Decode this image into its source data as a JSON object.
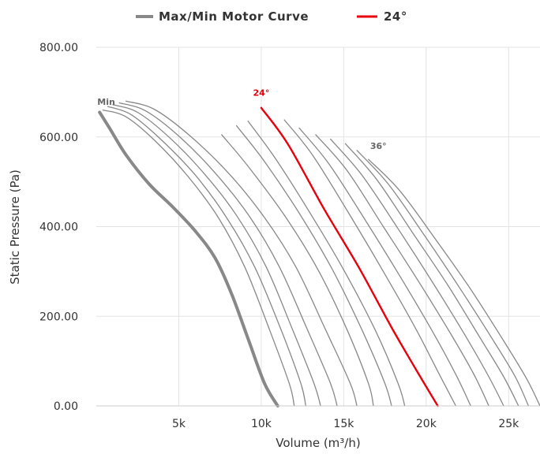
{
  "chart_data": {
    "type": "line",
    "title": "",
    "xlabel": "Volume (m³/h)",
    "ylabel": "Static Pressure (Pa)",
    "xlim": [
      0,
      26900
    ],
    "ylim": [
      0,
      800
    ],
    "x_ticks": [
      5000,
      10000,
      15000,
      20000,
      25000
    ],
    "x_tick_labels": [
      "5k",
      "10k",
      "15k",
      "20k",
      "25k"
    ],
    "y_ticks": [
      0,
      200,
      400,
      600,
      800
    ],
    "y_tick_labels": [
      "0.00",
      "200.00",
      "400.00",
      "600.00",
      "800.00"
    ],
    "grid": true,
    "legend_position": "top-center",
    "legend": [
      {
        "name": "Max/Min Motor Curve",
        "color": "#888888"
      },
      {
        "name": "24°",
        "color": "#e8000b"
      }
    ],
    "series": [
      {
        "name": "Max/Min Motor Curve",
        "color": "#888888",
        "width": 4,
        "x": [
          200,
          800,
          1800,
          3200,
          4600,
          6000,
          7200,
          8200,
          9200,
          10200,
          11000
        ],
        "y": [
          655,
          620,
          560,
          495,
          445,
          390,
          330,
          250,
          150,
          50,
          0
        ]
      },
      {
        "color": "#888888",
        "width": 1.3,
        "x": [
          400,
          1800,
          3600,
          5600,
          7400,
          9000,
          10500,
          11700,
          12000
        ],
        "y": [
          660,
          645,
          590,
          510,
          420,
          310,
          170,
          50,
          0
        ]
      },
      {
        "color": "#888888",
        "width": 1.3,
        "x": [
          700,
          2100,
          3900,
          6000,
          7900,
          9600,
          11200,
          12400,
          12700
        ],
        "y": [
          668,
          650,
          595,
          515,
          420,
          310,
          170,
          50,
          0
        ]
      },
      {
        "color": "#888888",
        "width": 1.3,
        "x": [
          1000,
          2500,
          4400,
          6500,
          8500,
          10300,
          11900,
          13200,
          13600
        ],
        "y": [
          672,
          655,
          600,
          520,
          425,
          310,
          170,
          50,
          0
        ]
      },
      {
        "color": "#888888",
        "width": 1.3,
        "x": [
          1400,
          3000,
          5000,
          7200,
          9300,
          11100,
          12800,
          14200,
          14600
        ],
        "y": [
          676,
          658,
          602,
          520,
          422,
          310,
          170,
          50,
          0
        ]
      },
      {
        "color": "#888888",
        "width": 1.3,
        "x": [
          1800,
          3500,
          5600,
          8000,
          10200,
          12100,
          13900,
          15400,
          15800
        ],
        "y": [
          680,
          662,
          605,
          520,
          420,
          310,
          170,
          50,
          0
        ]
      },
      {
        "color": "#888888",
        "width": 1.3,
        "x": [
          7600,
          9300,
          11500,
          13500,
          15200,
          16500,
          16800
        ],
        "y": [
          605,
          530,
          420,
          300,
          170,
          50,
          0
        ]
      },
      {
        "color": "#888888",
        "width": 1.3,
        "x": [
          8500,
          10200,
          12300,
          14300,
          16100,
          17500,
          17900
        ],
        "y": [
          625,
          545,
          430,
          305,
          170,
          50,
          0
        ]
      },
      {
        "color": "#888888",
        "width": 1.3,
        "x": [
          9200,
          10800,
          12800,
          14900,
          16900,
          18300,
          18700
        ],
        "y": [
          635,
          555,
          440,
          310,
          170,
          50,
          0
        ]
      },
      {
        "name": "24°",
        "color": "#e8000b",
        "width": 2.4,
        "x": [
          10000,
          11600,
          13800,
          15900,
          17900,
          19400,
          20700
        ],
        "y": [
          665,
          585,
          440,
          310,
          175,
          80,
          0
        ]
      },
      {
        "color": "#888888",
        "width": 1.3,
        "x": [
          11400,
          13100,
          15300,
          17400,
          19400,
          20800,
          21800
        ],
        "y": [
          638,
          560,
          430,
          300,
          170,
          70,
          0
        ]
      },
      {
        "color": "#888888",
        "width": 1.3,
        "x": [
          12300,
          14100,
          16300,
          18400,
          20400,
          21800,
          22700
        ],
        "y": [
          620,
          540,
          415,
          290,
          165,
          70,
          0
        ]
      },
      {
        "color": "#888888",
        "width": 1.3,
        "x": [
          13300,
          15200,
          17400,
          19500,
          21500,
          22900,
          23800
        ],
        "y": [
          605,
          525,
          400,
          280,
          160,
          70,
          0
        ]
      },
      {
        "color": "#888888",
        "width": 1.3,
        "x": [
          14200,
          16100,
          18300,
          20400,
          22400,
          23800,
          24700
        ],
        "y": [
          595,
          515,
          395,
          275,
          155,
          65,
          0
        ]
      },
      {
        "color": "#888888",
        "width": 1.3,
        "x": [
          15100,
          17000,
          19200,
          21300,
          23300,
          24700,
          25600
        ],
        "y": [
          585,
          505,
          385,
          270,
          150,
          65,
          0
        ]
      },
      {
        "color": "#888888",
        "width": 1.3,
        "x": [
          15800,
          17700,
          19900,
          22000,
          24000,
          25400,
          26200
        ],
        "y": [
          570,
          495,
          380,
          265,
          150,
          65,
          0
        ]
      },
      {
        "color": "#888888",
        "width": 1.3,
        "x": [
          16500,
          18400,
          20600,
          22700,
          24700,
          26100,
          26900
        ],
        "y": [
          550,
          480,
          370,
          260,
          145,
          60,
          0
        ]
      }
    ],
    "annotations": [
      {
        "text": "Min",
        "x": 600,
        "y": 672,
        "color": "#666666"
      },
      {
        "text": "24°",
        "x": 10000,
        "y": 692,
        "color": "#e8000b"
      },
      {
        "text": "36°",
        "x": 17100,
        "y": 573,
        "color": "#666666"
      }
    ]
  }
}
